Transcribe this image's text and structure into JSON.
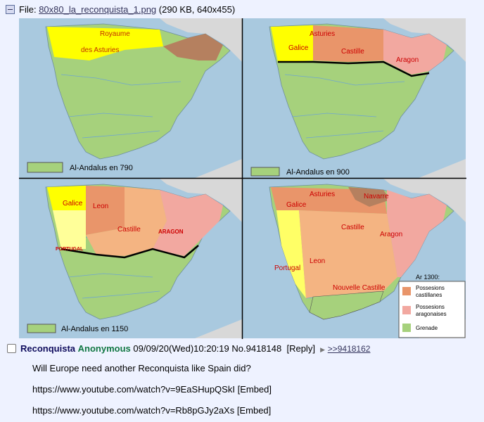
{
  "file": {
    "label": "File:",
    "name": "80x80_la_reconquista_1.png",
    "meta": "(290 KB, 640x455)"
  },
  "maps": [
    {
      "legend": "Al-Andalus en 790",
      "regions": [
        "Royaume",
        "des Asturies"
      ]
    },
    {
      "legend": "Al-Andalus en 900",
      "regions": [
        "Asturies",
        "Galice",
        "Castille",
        "Aragon"
      ]
    },
    {
      "legend": "Al-Andalus en 1150",
      "regions": [
        "Galice",
        "Leon",
        "Castille",
        "ARAGON",
        "PORTUGAL"
      ]
    },
    {
      "legend_title": "Ar 1300:",
      "legend": [
        [
          "Possesions",
          "castillanes"
        ],
        [
          "Possesions",
          "aragonaises"
        ],
        [
          "Grenade"
        ]
      ],
      "regions": [
        "Asturies",
        "Galice",
        "Navarre",
        "Castille",
        "Aragon",
        "Leon",
        "Portugal",
        "Nouvelle Castille"
      ]
    }
  ],
  "post": {
    "subject": "Reconquista",
    "name": "Anonymous",
    "date": "09/09/20(Wed)10:20:19",
    "number": "No.9418148",
    "reply": "[Reply]",
    "backlink": ">>9418162",
    "message": [
      "Will Europe need another Reconquista like Spain did?",
      "https://www.youtube.com/watch?v=9EaSHupQSkI",
      "https://www.youtube.com/watch?v=Rb8pGJy2aXs"
    ],
    "embed": "[Embed]"
  }
}
